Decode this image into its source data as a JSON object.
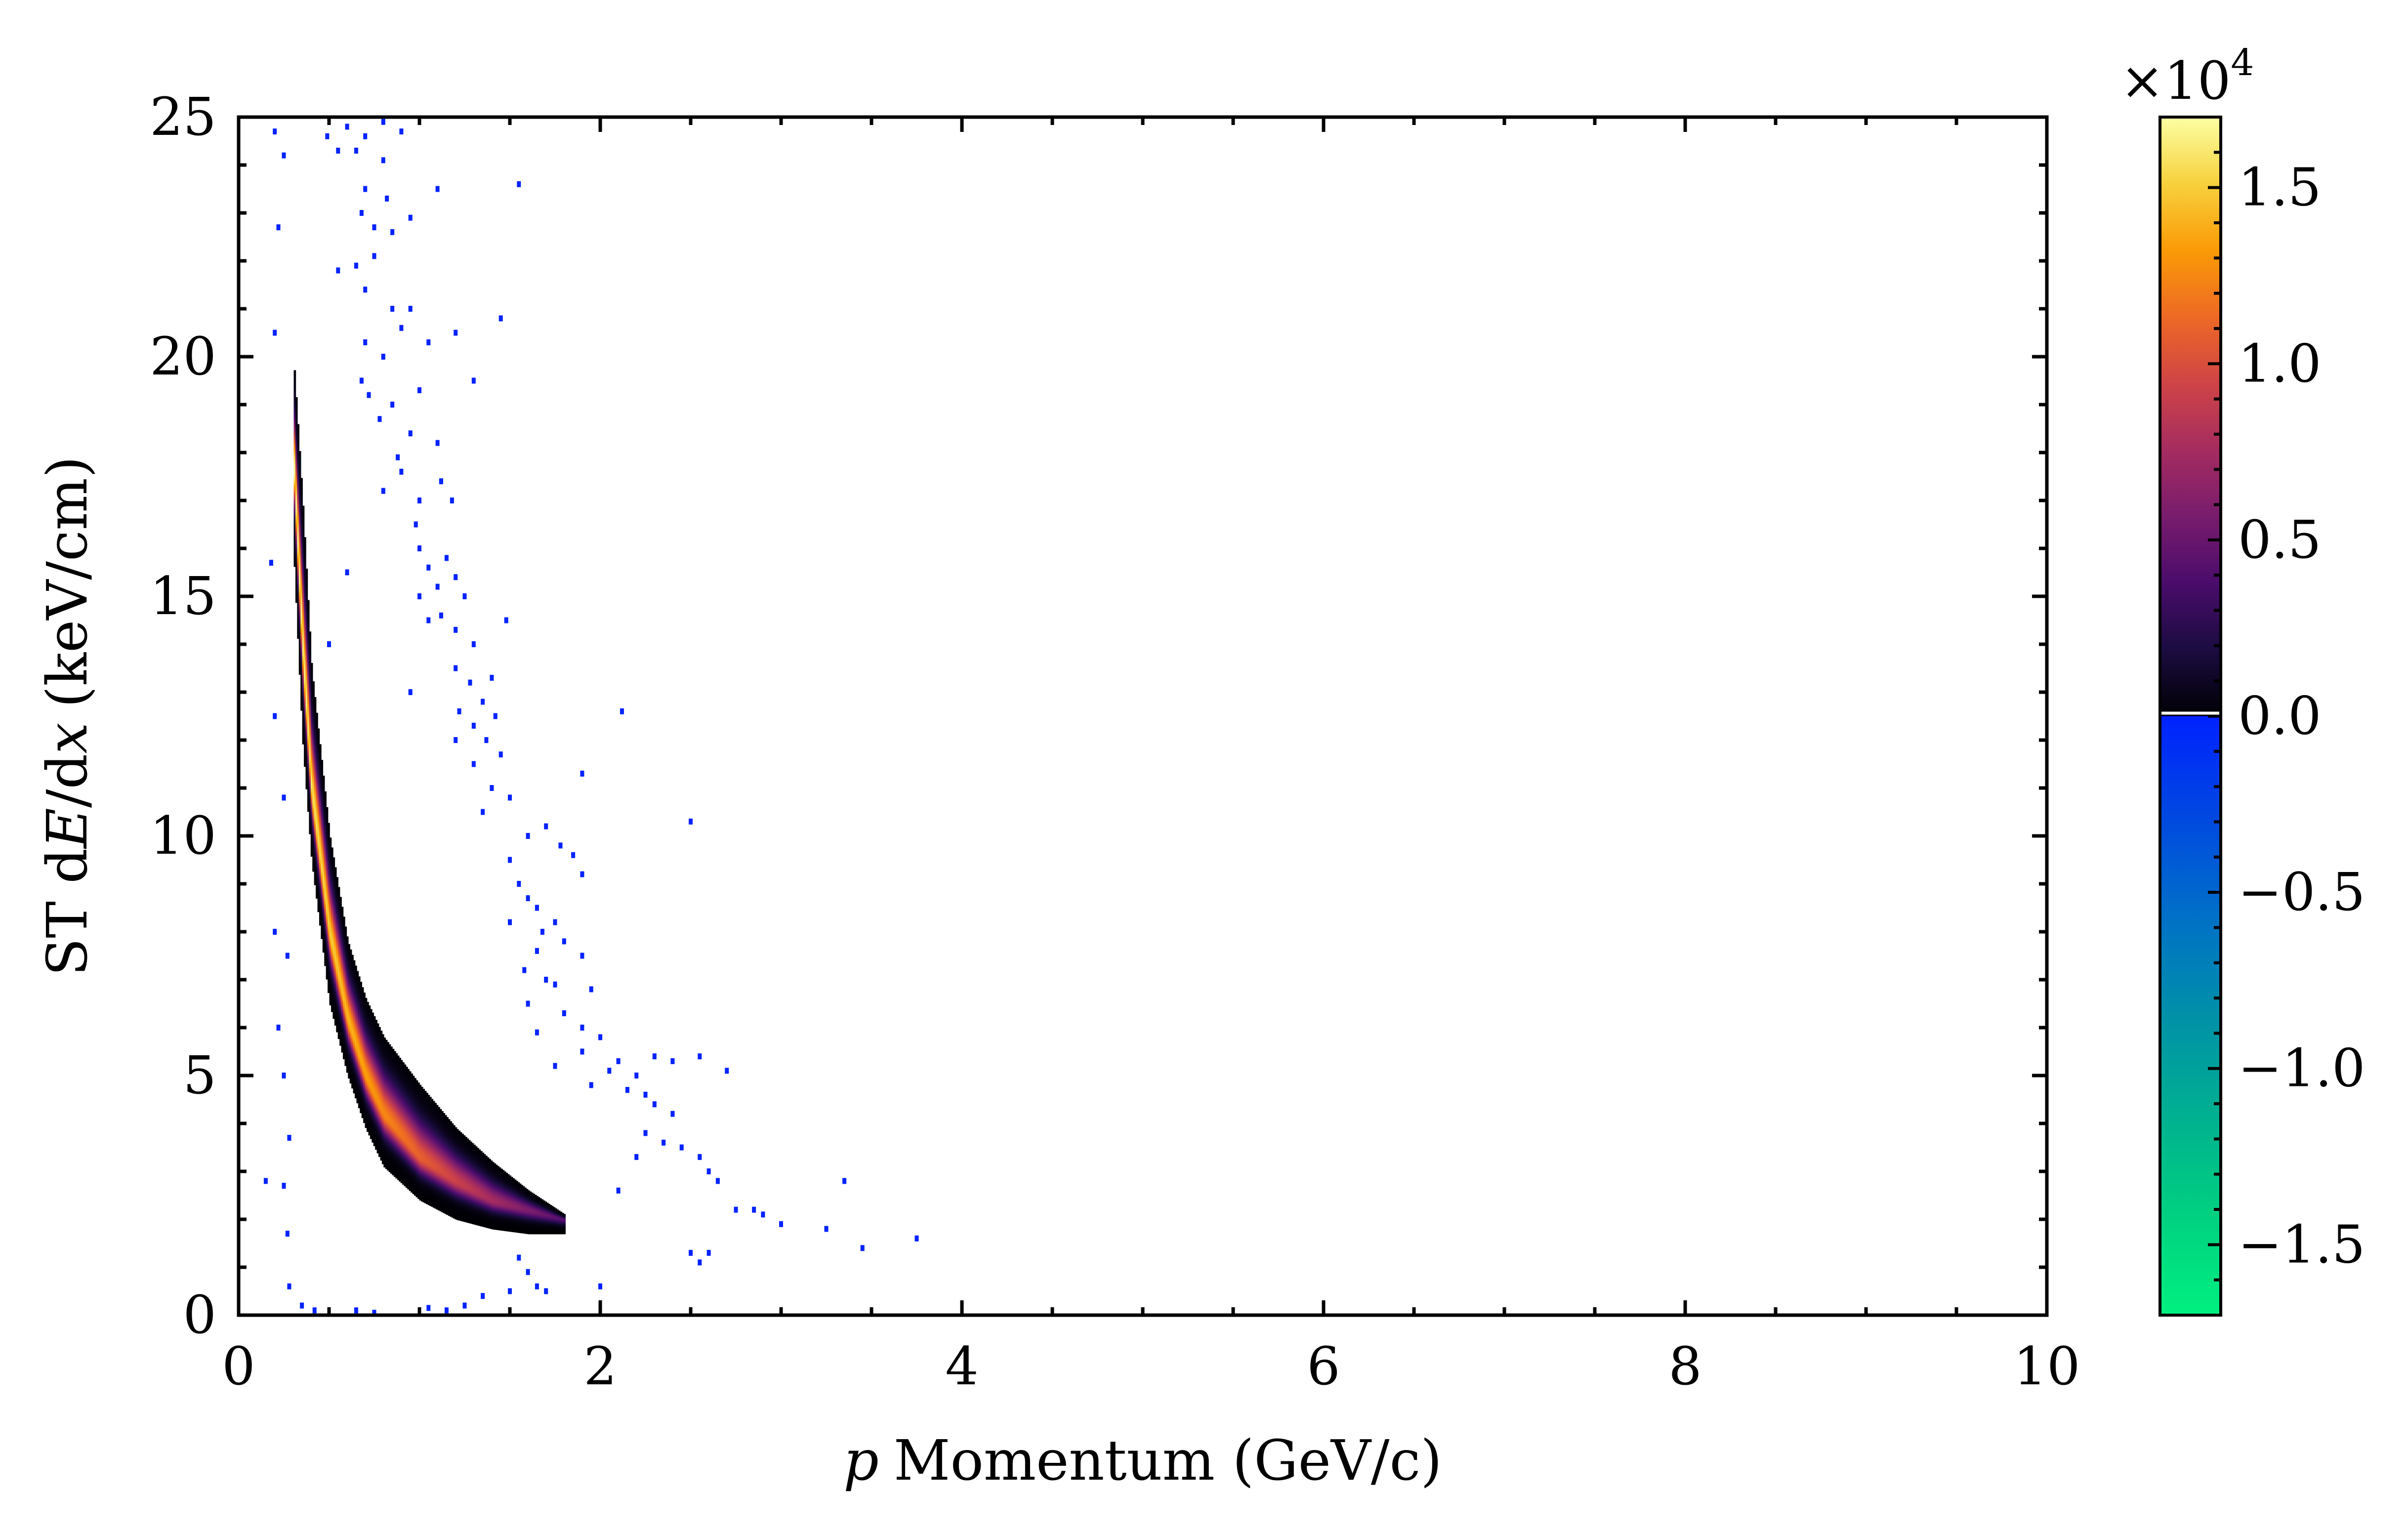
{
  "chart_data": {
    "type": "heatmap",
    "title": "",
    "xlabel_var": "p",
    "xlabel": "Momentum (GeV/c)",
    "ylabel_prefix": "ST d",
    "ylabel_var_E": "E",
    "ylabel_mid": "/d",
    "ylabel_var_x": "x",
    "ylabel_suffix": "(keV/cm)",
    "xlim": [
      0,
      10
    ],
    "ylim": [
      0,
      25
    ],
    "x_ticks": [
      0,
      2,
      4,
      6,
      8,
      10
    ],
    "x_tick_labels": [
      "0",
      "2",
      "4",
      "6",
      "8",
      "10"
    ],
    "y_ticks": [
      0,
      5,
      10,
      15,
      20,
      25
    ],
    "y_tick_labels": [
      "0",
      "5",
      "10",
      "15",
      "20",
      "25"
    ],
    "grid": false,
    "colorbar": {
      "scale_label_base": "×10",
      "scale_label_exp": "4",
      "range": [
        -1.7,
        1.7
      ],
      "ticks": [
        1.5,
        1.0,
        0.5,
        0.0,
        -0.5,
        -1.0,
        -1.5
      ],
      "tick_labels": [
        "1.5",
        "1.0",
        "0.5",
        "0.0",
        "−0.5",
        "−1.0",
        "−1.5"
      ],
      "positive_colormap": [
        "#000004",
        "#1b0c41",
        "#4a0c6b",
        "#781c6d",
        "#a52c60",
        "#cf4446",
        "#ed6925",
        "#fb9b06",
        "#f7d13d",
        "#fcffa4"
      ],
      "negative_colormap": [
        "#0022ff",
        "#0048e0",
        "#0070c8",
        "#0090a8",
        "#00b090",
        "#00d080",
        "#00f080"
      ]
    },
    "main_band": {
      "description_values": "density ridge of counts in p vs dE/dx",
      "ridge_x": [
        0.3,
        0.35,
        0.4,
        0.5,
        0.6,
        0.7,
        0.8,
        1.0,
        1.2,
        1.4,
        1.6,
        1.8
      ],
      "ridge_y": [
        18.0,
        14.0,
        11.0,
        8.0,
        6.2,
        5.0,
        4.2,
        3.3,
        2.8,
        2.4,
        2.2,
        2.0
      ],
      "upper_edge_y": [
        20.0,
        17.0,
        13.5,
        10.0,
        7.8,
        6.6,
        5.8,
        4.8,
        3.9,
        3.2,
        2.6,
        2.1
      ],
      "lower_edge_y": [
        16.0,
        12.0,
        9.5,
        6.5,
        5.0,
        3.9,
        3.1,
        2.4,
        2.0,
        1.8,
        1.7,
        1.7
      ],
      "peak_count": 17000
    },
    "sparse_points": {
      "color": "#0022ff",
      "points": [
        [
          0.2,
          24.7
        ],
        [
          0.25,
          24.2
        ],
        [
          0.22,
          22.7
        ],
        [
          0.2,
          20.5
        ],
        [
          0.18,
          15.7
        ],
        [
          0.2,
          12.5
        ],
        [
          0.25,
          10.8
        ],
        [
          0.2,
          8.0
        ],
        [
          0.27,
          7.5
        ],
        [
          0.22,
          6.0
        ],
        [
          0.25,
          5.0
        ],
        [
          0.15,
          2.8
        ],
        [
          0.25,
          2.7
        ],
        [
          0.28,
          3.7
        ],
        [
          0.27,
          1.7
        ],
        [
          0.28,
          0.6
        ],
        [
          0.35,
          0.2
        ],
        [
          0.42,
          0.1
        ],
        [
          0.49,
          24.6
        ],
        [
          0.55,
          24.3
        ],
        [
          0.6,
          24.8
        ],
        [
          0.65,
          24.3
        ],
        [
          0.7,
          24.6
        ],
        [
          0.8,
          24.9
        ],
        [
          0.9,
          24.7
        ],
        [
          0.8,
          24.1
        ],
        [
          0.7,
          23.5
        ],
        [
          0.68,
          23.0
        ],
        [
          0.82,
          23.3
        ],
        [
          0.75,
          22.7
        ],
        [
          0.85,
          22.6
        ],
        [
          0.95,
          22.9
        ],
        [
          1.1,
          23.5
        ],
        [
          1.55,
          23.6
        ],
        [
          0.55,
          21.8
        ],
        [
          0.65,
          21.9
        ],
        [
          0.7,
          21.4
        ],
        [
          0.75,
          22.1
        ],
        [
          0.85,
          21.0
        ],
        [
          0.9,
          20.6
        ],
        [
          0.95,
          21.0
        ],
        [
          0.7,
          20.3
        ],
        [
          0.8,
          20.0
        ],
        [
          1.05,
          20.3
        ],
        [
          1.2,
          20.5
        ],
        [
          1.45,
          20.8
        ],
        [
          1.3,
          19.5
        ],
        [
          0.68,
          19.5
        ],
        [
          0.72,
          19.2
        ],
        [
          0.78,
          18.7
        ],
        [
          0.85,
          19.0
        ],
        [
          0.95,
          18.4
        ],
        [
          1.0,
          19.3
        ],
        [
          1.1,
          18.2
        ],
        [
          0.88,
          17.9
        ],
        [
          0.8,
          17.2
        ],
        [
          0.9,
          17.6
        ],
        [
          1.0,
          17.0
        ],
        [
          1.12,
          17.4
        ],
        [
          1.18,
          17.0
        ],
        [
          0.98,
          16.5
        ],
        [
          1.0,
          16.0
        ],
        [
          1.05,
          15.6
        ],
        [
          1.1,
          15.2
        ],
        [
          1.15,
          15.8
        ],
        [
          1.2,
          15.4
        ],
        [
          1.0,
          15.0
        ],
        [
          1.12,
          14.6
        ],
        [
          1.2,
          14.3
        ],
        [
          1.25,
          15.0
        ],
        [
          1.3,
          14.0
        ],
        [
          1.05,
          14.5
        ],
        [
          1.2,
          13.5
        ],
        [
          1.28,
          13.2
        ],
        [
          1.35,
          12.8
        ],
        [
          1.4,
          13.3
        ],
        [
          1.22,
          12.6
        ],
        [
          1.3,
          12.3
        ],
        [
          1.37,
          12.0
        ],
        [
          1.42,
          12.5
        ],
        [
          0.95,
          13.0
        ],
        [
          1.2,
          12.0
        ],
        [
          1.3,
          11.5
        ],
        [
          1.4,
          11.0
        ],
        [
          1.45,
          11.7
        ],
        [
          1.5,
          10.8
        ],
        [
          1.35,
          10.5
        ],
        [
          1.6,
          10.0
        ],
        [
          1.7,
          10.2
        ],
        [
          1.78,
          9.8
        ],
        [
          1.85,
          9.6
        ],
        [
          1.9,
          9.2
        ],
        [
          1.5,
          9.5
        ],
        [
          1.55,
          9.0
        ],
        [
          1.6,
          8.7
        ],
        [
          1.65,
          8.5
        ],
        [
          1.5,
          8.2
        ],
        [
          1.68,
          8.0
        ],
        [
          1.75,
          8.2
        ],
        [
          1.8,
          7.8
        ],
        [
          1.65,
          7.6
        ],
        [
          1.9,
          7.5
        ],
        [
          1.58,
          7.2
        ],
        [
          1.7,
          7.0
        ],
        [
          1.75,
          6.9
        ],
        [
          1.95,
          6.8
        ],
        [
          1.6,
          6.5
        ],
        [
          1.8,
          6.3
        ],
        [
          1.9,
          6.0
        ],
        [
          2.0,
          5.8
        ],
        [
          1.65,
          5.9
        ],
        [
          1.75,
          5.2
        ],
        [
          1.9,
          5.5
        ],
        [
          2.05,
          5.1
        ],
        [
          2.1,
          5.3
        ],
        [
          2.2,
          5.0
        ],
        [
          2.3,
          5.4
        ],
        [
          2.4,
          5.3
        ],
        [
          2.55,
          5.4
        ],
        [
          2.7,
          5.1
        ],
        [
          1.95,
          4.8
        ],
        [
          2.15,
          4.7
        ],
        [
          2.25,
          4.6
        ],
        [
          2.3,
          4.4
        ],
        [
          2.4,
          4.2
        ],
        [
          2.25,
          3.8
        ],
        [
          2.35,
          3.6
        ],
        [
          2.45,
          3.5
        ],
        [
          2.55,
          3.3
        ],
        [
          2.2,
          3.3
        ],
        [
          2.6,
          3.0
        ],
        [
          2.65,
          2.8
        ],
        [
          2.1,
          2.6
        ],
        [
          2.75,
          2.2
        ],
        [
          2.85,
          2.2
        ],
        [
          2.9,
          2.1
        ],
        [
          3.0,
          1.9
        ],
        [
          3.35,
          2.8
        ],
        [
          3.25,
          1.8
        ],
        [
          3.45,
          1.4
        ],
        [
          3.75,
          1.6
        ],
        [
          2.5,
          1.3
        ],
        [
          2.6,
          1.3
        ],
        [
          2.55,
          1.1
        ],
        [
          1.55,
          1.2
        ],
        [
          1.6,
          0.9
        ],
        [
          1.65,
          0.6
        ],
        [
          1.7,
          0.5
        ],
        [
          1.5,
          0.5
        ],
        [
          2.12,
          12.6
        ],
        [
          1.9,
          11.3
        ],
        [
          2.5,
          10.3
        ],
        [
          1.48,
          14.5
        ],
        [
          1.25,
          0.2
        ],
        [
          1.35,
          0.4
        ],
        [
          1.05,
          0.15
        ],
        [
          1.15,
          0.1
        ],
        [
          2.0,
          0.6
        ],
        [
          0.65,
          0.1
        ],
        [
          0.75,
          0.05
        ],
        [
          0.6,
          15.5
        ],
        [
          0.5,
          14.0
        ]
      ]
    }
  }
}
